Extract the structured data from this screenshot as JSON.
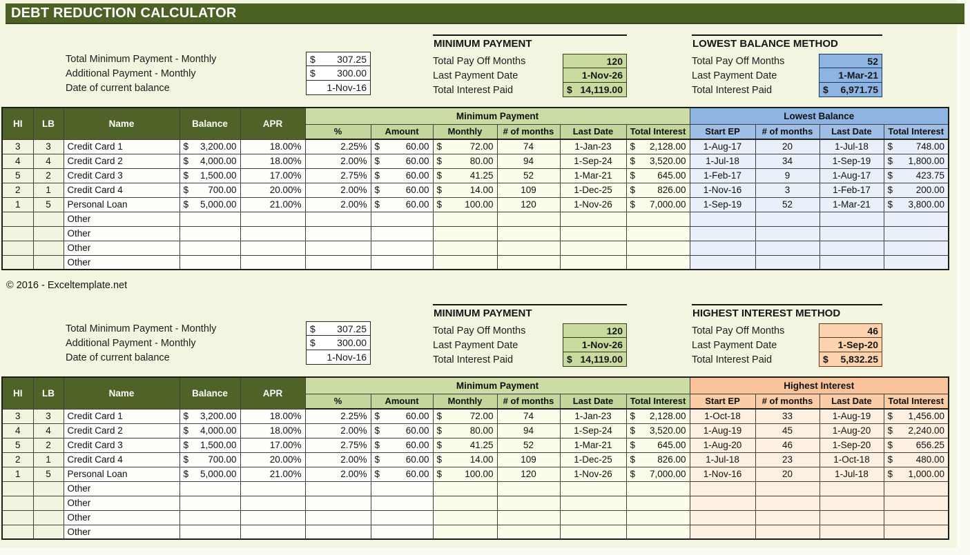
{
  "title_bar": {
    "title": "DEBT REDUCTION CALCULATOR"
  },
  "copyright": "© 2016 - Exceltemplate.net",
  "colors": {
    "header_dark_green": "#4f6228",
    "light_green": "#c3d69b",
    "blue": "#8db4e2",
    "orange": "#fac39c",
    "page_background": "#f3f5e1"
  },
  "inputs": {
    "rows": [
      {
        "label": "Total Minimum Payment - Monthly",
        "prefix": "$",
        "value": "307.25"
      },
      {
        "label": "Additional Payment - Monthly",
        "prefix": "$",
        "value": "300.00"
      },
      {
        "label": "Date of current balance",
        "prefix": "",
        "value": "1-Nov-16"
      }
    ]
  },
  "minimum_payment": {
    "heading": "MINIMUM PAYMENT",
    "rows": [
      {
        "label": "Total Pay Off Months",
        "prefix": "",
        "value": "120"
      },
      {
        "label": "Last Payment Date",
        "prefix": "",
        "value": "1-Nov-26"
      },
      {
        "label": "Total Interest Paid",
        "prefix": "$",
        "value": "14,119.00"
      }
    ]
  },
  "lowest_balance": {
    "heading": "LOWEST BALANCE METHOD",
    "rows": [
      {
        "label": "Total Pay Off Months",
        "prefix": "",
        "value": "52"
      },
      {
        "label": "Last Payment Date",
        "prefix": "",
        "value": "1-Mar-21"
      },
      {
        "label": "Total Interest Paid",
        "prefix": "$",
        "value": "6,971.75"
      }
    ]
  },
  "highest_interest": {
    "heading": "HIGHEST INTEREST METHOD",
    "rows": [
      {
        "label": "Total Pay Off Months",
        "prefix": "",
        "value": "46"
      },
      {
        "label": "Last Payment Date",
        "prefix": "",
        "value": "1-Sep-20"
      },
      {
        "label": "Total Interest Paid",
        "prefix": "$",
        "value": "5,832.25"
      }
    ]
  },
  "table": {
    "base_headers": [
      "HI",
      "LB",
      "Name",
      "Balance",
      "APR"
    ],
    "minimum_payment_group": "Minimum Payment",
    "minimum_payment_headers": [
      "%",
      "Amount",
      "Monthly",
      "# of months",
      "Last Date",
      "Total Interest"
    ],
    "lowest_balance_group": "Lowest Balance",
    "highest_interest_group": "Highest Interest",
    "method_headers": [
      "Start EP",
      "# of months",
      "Last Date",
      "Total Interest"
    ],
    "other_row_label": "Other",
    "other_row_count": 4,
    "debts": [
      {
        "hi": "3",
        "lb": "3",
        "name": "Credit Card 1",
        "balance": "3,200.00",
        "apr": "18.00%",
        "min_pct": "2.25%",
        "min_amount": "60.00",
        "monthly": "72.00",
        "num_months": "74",
        "last_date": "1-Jan-23",
        "total_interest": "2,128.00"
      },
      {
        "hi": "4",
        "lb": "4",
        "name": "Credit Card 2",
        "balance": "4,000.00",
        "apr": "18.00%",
        "min_pct": "2.00%",
        "min_amount": "60.00",
        "monthly": "80.00",
        "num_months": "94",
        "last_date": "1-Sep-24",
        "total_interest": "3,520.00"
      },
      {
        "hi": "5",
        "lb": "2",
        "name": "Credit Card 3",
        "balance": "1,500.00",
        "apr": "17.00%",
        "min_pct": "2.75%",
        "min_amount": "60.00",
        "monthly": "41.25",
        "num_months": "52",
        "last_date": "1-Mar-21",
        "total_interest": "645.00"
      },
      {
        "hi": "2",
        "lb": "1",
        "name": "Credit Card 4",
        "balance": "700.00",
        "apr": "20.00%",
        "min_pct": "2.00%",
        "min_amount": "60.00",
        "monthly": "14.00",
        "num_months": "109",
        "last_date": "1-Dec-25",
        "total_interest": "826.00"
      },
      {
        "hi": "1",
        "lb": "5",
        "name": "Personal Loan",
        "balance": "5,000.00",
        "apr": "21.00%",
        "min_pct": "2.00%",
        "min_amount": "60.00",
        "monthly": "100.00",
        "num_months": "120",
        "last_date": "1-Nov-26",
        "total_interest": "7,000.00"
      }
    ],
    "lowest_balance_results": [
      {
        "start_ep": "1-Aug-17",
        "num_months": "20",
        "last_date": "1-Jul-18",
        "total_interest": "748.00"
      },
      {
        "start_ep": "1-Jul-18",
        "num_months": "34",
        "last_date": "1-Sep-19",
        "total_interest": "1,800.00"
      },
      {
        "start_ep": "1-Feb-17",
        "num_months": "9",
        "last_date": "1-Aug-17",
        "total_interest": "423.75"
      },
      {
        "start_ep": "1-Nov-16",
        "num_months": "3",
        "last_date": "1-Feb-17",
        "total_interest": "200.00"
      },
      {
        "start_ep": "1-Sep-19",
        "num_months": "52",
        "last_date": "1-Mar-21",
        "total_interest": "3,800.00"
      }
    ],
    "highest_interest_results": [
      {
        "start_ep": "1-Oct-18",
        "num_months": "33",
        "last_date": "1-Aug-19",
        "total_interest": "1,456.00"
      },
      {
        "start_ep": "1-Aug-19",
        "num_months": "45",
        "last_date": "1-Aug-20",
        "total_interest": "2,240.00"
      },
      {
        "start_ep": "1-Aug-20",
        "num_months": "46",
        "last_date": "1-Sep-20",
        "total_interest": "656.25"
      },
      {
        "start_ep": "1-Jul-18",
        "num_months": "23",
        "last_date": "1-Oct-18",
        "total_interest": "480.00"
      },
      {
        "start_ep": "1-Nov-16",
        "num_months": "20",
        "last_date": "1-Jul-18",
        "total_interest": "1,000.00"
      }
    ]
  }
}
